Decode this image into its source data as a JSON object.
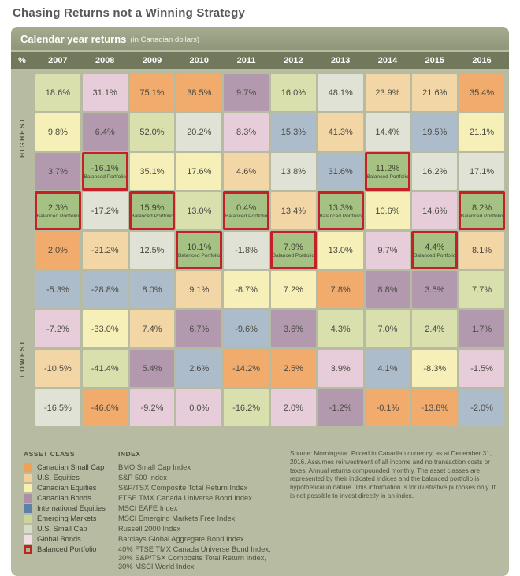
{
  "page": {
    "title": "Chasing Returns not a Winning Strategy"
  },
  "panel": {
    "header_title": "Calendar year returns",
    "header_subtitle": "(in Canadian dollars)",
    "percent_symbol": "%",
    "axis_top": "HIGHEST",
    "axis_bottom": "LOWEST"
  },
  "colors": {
    "panel_bg": "#b6bba2",
    "header_bar_bg": "#9aa184",
    "year_row_bg": "#71785c",
    "balanced_highlight_border": "#c32127",
    "title_text": "#58585a",
    "cell_text": "#4b4a44"
  },
  "chart_data": {
    "type": "table",
    "title": "Calendar year returns (in Canadian dollars)",
    "subtitle": "Chasing Returns not a Winning Strategy",
    "rank_axis": {
      "top": "HIGHEST",
      "bottom": "LOWEST"
    },
    "years": [
      "2007",
      "2008",
      "2009",
      "2010",
      "2011",
      "2012",
      "2013",
      "2014",
      "2015",
      "2016"
    ],
    "balanced_label": "Balanced Portfolio",
    "asset_classes": [
      {
        "key": "csc",
        "name": "Canadian Small Cap",
        "index": "BMO Small Cap Index",
        "cell_color": "#f1ab6c",
        "legend_color": "#efa257"
      },
      {
        "key": "use",
        "name": "U.S. Equities",
        "index": "S&P 500 Index",
        "cell_color": "#f3d6a6",
        "legend_color": "#f4d099"
      },
      {
        "key": "cde",
        "name": "Canadian Equities",
        "index": "S&P/TSX Composite Total Return Index",
        "cell_color": "#f6f0b8",
        "legend_color": "#f8f0af"
      },
      {
        "key": "cdb",
        "name": "Canadian Bonds",
        "index": "FTSE TMX Canada Universe Bond Index",
        "cell_color": "#b399ae",
        "legend_color": "#ac8ea7"
      },
      {
        "key": "ine",
        "name": "International Equities",
        "index": "MSCI EAFE Index",
        "cell_color": "#adbcca",
        "legend_color": "#5c80a7"
      },
      {
        "key": "emm",
        "name": "Emerging Markets",
        "index": "MSCI Emerging Markets Free Index",
        "cell_color": "#d9e0ae",
        "legend_color": "#ccd49a"
      },
      {
        "key": "uss",
        "name": "U.S. Small Cap",
        "index": "Russell 2000 Index",
        "cell_color": "#dfe2d4",
        "legend_color": "#d7dbc9"
      },
      {
        "key": "glb",
        "name": "Global Bonds",
        "index": "Barclays Global Aggregate Bond Index",
        "cell_color": "#e6cdd9",
        "legend_color": "#f2dde5"
      },
      {
        "key": "bp",
        "name": "Balanced Portfolio",
        "index": "40% FTSE TMX Canada Universe Bond Index,\n30% S&P/TSX Composite Total Return Index,\n30% MSCI World Index",
        "cell_color": "#a6c184",
        "legend_color": "#a3be7e"
      }
    ],
    "rows": [
      [
        {
          "v": "18.6%",
          "a": "emm"
        },
        {
          "v": "31.1%",
          "a": "glb"
        },
        {
          "v": "75.1%",
          "a": "csc"
        },
        {
          "v": "38.5%",
          "a": "csc"
        },
        {
          "v": "9.7%",
          "a": "cdb"
        },
        {
          "v": "16.0%",
          "a": "emm"
        },
        {
          "v": "48.1%",
          "a": "uss"
        },
        {
          "v": "23.9%",
          "a": "use"
        },
        {
          "v": "21.6%",
          "a": "use"
        },
        {
          "v": "35.4%",
          "a": "csc"
        }
      ],
      [
        {
          "v": "9.8%",
          "a": "cde"
        },
        {
          "v": "6.4%",
          "a": "cdb"
        },
        {
          "v": "52.0%",
          "a": "emm"
        },
        {
          "v": "20.2%",
          "a": "uss"
        },
        {
          "v": "8.3%",
          "a": "glb"
        },
        {
          "v": "15.3%",
          "a": "ine"
        },
        {
          "v": "41.3%",
          "a": "use"
        },
        {
          "v": "14.4%",
          "a": "uss"
        },
        {
          "v": "19.5%",
          "a": "ine"
        },
        {
          "v": "21.1%",
          "a": "cde"
        }
      ],
      [
        {
          "v": "3.7%",
          "a": "cdb"
        },
        {
          "v": "-16.1%",
          "a": "bp"
        },
        {
          "v": "35.1%",
          "a": "cde"
        },
        {
          "v": "17.6%",
          "a": "cde"
        },
        {
          "v": "4.6%",
          "a": "use"
        },
        {
          "v": "13.8%",
          "a": "uss"
        },
        {
          "v": "31.6%",
          "a": "ine"
        },
        {
          "v": "11.2%",
          "a": "bp"
        },
        {
          "v": "16.2%",
          "a": "uss"
        },
        {
          "v": "17.1%",
          "a": "uss"
        }
      ],
      [
        {
          "v": "2.3%",
          "a": "bp"
        },
        {
          "v": "-17.2%",
          "a": "uss"
        },
        {
          "v": "15.9%",
          "a": "bp"
        },
        {
          "v": "13.0%",
          "a": "emm"
        },
        {
          "v": "0.4%",
          "a": "bp"
        },
        {
          "v": "13.4%",
          "a": "use"
        },
        {
          "v": "13.3%",
          "a": "bp"
        },
        {
          "v": "10.6%",
          "a": "cde"
        },
        {
          "v": "14.6%",
          "a": "glb"
        },
        {
          "v": "8.2%",
          "a": "bp"
        }
      ],
      [
        {
          "v": "2.0%",
          "a": "csc"
        },
        {
          "v": "-21.2%",
          "a": "use"
        },
        {
          "v": "12.5%",
          "a": "uss"
        },
        {
          "v": "10.1%",
          "a": "bp"
        },
        {
          "v": "-1.8%",
          "a": "uss"
        },
        {
          "v": "7.9%",
          "a": "bp"
        },
        {
          "v": "13.0%",
          "a": "cde"
        },
        {
          "v": "9.7%",
          "a": "glb"
        },
        {
          "v": "4.4%",
          "a": "bp"
        },
        {
          "v": "8.1%",
          "a": "use"
        }
      ],
      [
        {
          "v": "-5.3%",
          "a": "ine"
        },
        {
          "v": "-28.8%",
          "a": "ine"
        },
        {
          "v": "8.0%",
          "a": "ine"
        },
        {
          "v": "9.1%",
          "a": "use"
        },
        {
          "v": "-8.7%",
          "a": "cde"
        },
        {
          "v": "7.2%",
          "a": "cde"
        },
        {
          "v": "7.8%",
          "a": "csc"
        },
        {
          "v": "8.8%",
          "a": "cdb"
        },
        {
          "v": "3.5%",
          "a": "cdb"
        },
        {
          "v": "7.7%",
          "a": "emm"
        }
      ],
      [
        {
          "v": "-7.2%",
          "a": "glb"
        },
        {
          "v": "-33.0%",
          "a": "cde"
        },
        {
          "v": "7.4%",
          "a": "use"
        },
        {
          "v": "6.7%",
          "a": "cdb"
        },
        {
          "v": "-9.6%",
          "a": "ine"
        },
        {
          "v": "3.6%",
          "a": "cdb"
        },
        {
          "v": "4.3%",
          "a": "emm"
        },
        {
          "v": "7.0%",
          "a": "emm"
        },
        {
          "v": "2.4%",
          "a": "emm"
        },
        {
          "v": "1.7%",
          "a": "cdb"
        }
      ],
      [
        {
          "v": "-10.5%",
          "a": "use"
        },
        {
          "v": "-41.4%",
          "a": "emm"
        },
        {
          "v": "5.4%",
          "a": "cdb"
        },
        {
          "v": "2.6%",
          "a": "ine"
        },
        {
          "v": "-14.2%",
          "a": "csc"
        },
        {
          "v": "2.5%",
          "a": "csc"
        },
        {
          "v": "3.9%",
          "a": "glb"
        },
        {
          "v": "4.1%",
          "a": "ine"
        },
        {
          "v": "-8.3%",
          "a": "cde"
        },
        {
          "v": "-1.5%",
          "a": "glb"
        }
      ],
      [
        {
          "v": "-16.5%",
          "a": "uss"
        },
        {
          "v": "-46.6%",
          "a": "csc"
        },
        {
          "v": "-9.2%",
          "a": "glb"
        },
        {
          "v": "0.0%",
          "a": "glb"
        },
        {
          "v": "-16.2%",
          "a": "emm"
        },
        {
          "v": "2.0%",
          "a": "glb"
        },
        {
          "v": "-1.2%",
          "a": "cdb"
        },
        {
          "v": "-0.1%",
          "a": "csc"
        },
        {
          "v": "-13.8%",
          "a": "csc"
        },
        {
          "v": "-2.0%",
          "a": "ine"
        }
      ]
    ]
  },
  "legend": {
    "asset_class_header": "ASSET CLASS",
    "index_header": "INDEX"
  },
  "source_note": "Source: Morningstar. Priced in Canadian currency, as at December 31, 2016. Assumes reinvestment of all income and no transaction costs or taxes. Annual returns compounded monthly. The asset classes are represented by their indicated indices and the balanced portfolio is hypothetical in nature. This information is for illustrative purposes only. It is not possible to invest directly in an index."
}
